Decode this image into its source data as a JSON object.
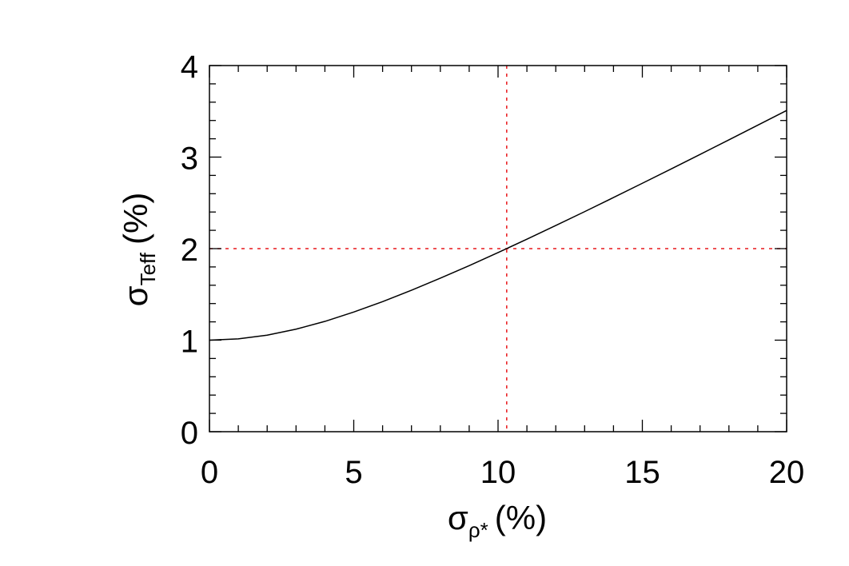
{
  "chart_data": {
    "type": "line",
    "xlabel": {
      "symbol": "σ",
      "subscript": "ρ*",
      "unit": "(%)"
    },
    "ylabel": {
      "symbol": "σ",
      "subscript": "Teff",
      "unit": "(%)"
    },
    "x": [
      0,
      1,
      2,
      3,
      4,
      5,
      6,
      7,
      8,
      9,
      10,
      11,
      12,
      13,
      14,
      15,
      16,
      17,
      18,
      19,
      20
    ],
    "series": [
      {
        "color": "#000000",
        "values": [
          1.0,
          1.014,
          1.055,
          1.12,
          1.205,
          1.307,
          1.421,
          1.545,
          1.677,
          1.814,
          1.957,
          2.103,
          2.253,
          2.404,
          2.558,
          2.714,
          2.871,
          3.029,
          3.188,
          3.349,
          3.509
        ]
      }
    ],
    "xlim": [
      0,
      20
    ],
    "xticks": [
      0,
      5,
      10,
      15,
      20
    ],
    "xminor": 5,
    "ylim": [
      0,
      4
    ],
    "yticks": [
      0,
      1,
      2,
      3,
      4
    ],
    "yminor": 5,
    "reference_lines": {
      "color": "#e8191c",
      "x": 10.3,
      "y": 2
    }
  }
}
